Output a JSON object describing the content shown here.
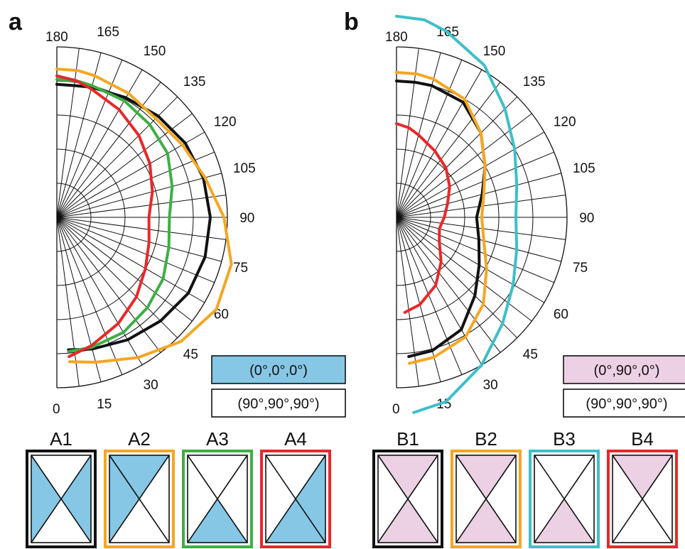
{
  "chart_data": [
    {
      "type": "line",
      "coordinate_system": "polar",
      "panel_label": "a",
      "angle_ticks": [
        "0",
        "15",
        "30",
        "45",
        "60",
        "75",
        "90",
        "105",
        "120",
        "135",
        "150",
        "165",
        "180"
      ],
      "grid": true,
      "legend": [
        {
          "text": "(0°,0°,0°)",
          "fill": "#86c7e6"
        },
        {
          "text": "(90°,90°,90°)",
          "fill": "#ffffff"
        }
      ],
      "config_fill": "#86c7e6",
      "configs": [
        {
          "label": "A1",
          "color": "#111111",
          "shaded": [
            "left",
            "right"
          ]
        },
        {
          "label": "A2",
          "color": "#f5a623",
          "shaded": [
            "top",
            "left"
          ]
        },
        {
          "label": "A3",
          "color": "#3cb043",
          "shaded": [
            "bottom"
          ]
        },
        {
          "label": "A4",
          "color": "#e8282b",
          "shaded": [
            "right",
            "bottom"
          ]
        }
      ],
      "series": [
        {
          "color": "#111111",
          "theta": [
            5,
            15,
            30,
            45,
            60,
            75,
            90,
            105,
            120,
            135,
            150,
            165,
            172,
            180
          ],
          "r": [
            0.78,
            0.8,
            0.83,
            0.86,
            0.89,
            0.9,
            0.9,
            0.89,
            0.87,
            0.84,
            0.81,
            0.79,
            0.78,
            0.78
          ]
        },
        {
          "color": "#f5a623",
          "theta": [
            5,
            15,
            30,
            45,
            60,
            75,
            90,
            105,
            120,
            135,
            150,
            165,
            172,
            180
          ],
          "r": [
            0.85,
            0.88,
            0.95,
            1.03,
            1.08,
            1.06,
            0.98,
            0.9,
            0.85,
            0.82,
            0.84,
            0.86,
            0.87,
            0.87
          ]
        },
        {
          "color": "#3cb043",
          "theta": [
            5,
            15,
            30,
            45,
            60,
            75,
            90,
            105,
            120,
            135,
            150,
            165,
            172,
            180
          ],
          "r": [
            0.79,
            0.79,
            0.78,
            0.75,
            0.72,
            0.68,
            0.66,
            0.7,
            0.75,
            0.77,
            0.79,
            0.8,
            0.81,
            0.81
          ]
        },
        {
          "color": "#e8282b",
          "theta": [
            5,
            15,
            30,
            45,
            60,
            75,
            90,
            105,
            120,
            135,
            150,
            165,
            172,
            180
          ],
          "r": [
            0.82,
            0.78,
            0.72,
            0.66,
            0.6,
            0.56,
            0.54,
            0.58,
            0.63,
            0.68,
            0.73,
            0.78,
            0.81,
            0.83
          ]
        }
      ]
    },
    {
      "type": "line",
      "coordinate_system": "polar",
      "panel_label": "b",
      "angle_ticks": [
        "0",
        "15",
        "30",
        "45",
        "60",
        "75",
        "90",
        "105",
        "120",
        "135",
        "150",
        "165",
        "180"
      ],
      "grid": true,
      "legend": [
        {
          "text": "(0°,90°,0°)",
          "fill": "#ecd0e3"
        },
        {
          "text": "(90°,90°,90°)",
          "fill": "#ffffff"
        }
      ],
      "config_fill": "#ecd0e3",
      "configs": [
        {
          "label": "B1",
          "color": "#111111",
          "shaded": [
            "top",
            "bottom"
          ]
        },
        {
          "label": "B2",
          "color": "#f5a623",
          "shaded": [
            "top",
            "bottom"
          ]
        },
        {
          "label": "B3",
          "color": "#3dbfc9",
          "shaded": [
            "bottom"
          ]
        },
        {
          "label": "B4",
          "color": "#e8282b",
          "shaded": [
            "top"
          ]
        }
      ],
      "series": [
        {
          "color": "#111111",
          "theta": [
            5,
            15,
            30,
            45,
            60,
            75,
            90,
            105,
            120,
            135,
            150,
            165,
            172,
            180
          ],
          "r": [
            0.82,
            0.81,
            0.76,
            0.65,
            0.56,
            0.5,
            0.47,
            0.52,
            0.6,
            0.7,
            0.78,
            0.8,
            0.8,
            0.8
          ]
        },
        {
          "color": "#f5a623",
          "theta": [
            5,
            15,
            30,
            45,
            60,
            75,
            90,
            105,
            120,
            135,
            150,
            165,
            172,
            180
          ],
          "r": [
            0.86,
            0.85,
            0.81,
            0.72,
            0.61,
            0.53,
            0.5,
            0.53,
            0.6,
            0.7,
            0.8,
            0.84,
            0.85,
            0.85
          ]
        },
        {
          "color": "#3dbfc9",
          "theta": [
            5,
            15,
            30,
            45,
            60,
            75,
            90,
            105,
            120,
            135,
            150,
            165,
            172,
            180
          ],
          "r": [
            1.15,
            1.12,
            1.0,
            0.88,
            0.79,
            0.73,
            0.7,
            0.73,
            0.8,
            0.9,
            1.03,
            1.13,
            1.17,
            1.18
          ]
        },
        {
          "color": "#e8282b",
          "theta": [
            5,
            15,
            30,
            45,
            60,
            75,
            90,
            105,
            120,
            135,
            150,
            165,
            172,
            180
          ],
          "r": [
            0.56,
            0.53,
            0.46,
            0.37,
            0.29,
            0.26,
            0.28,
            0.31,
            0.36,
            0.41,
            0.45,
            0.5,
            0.53,
            0.55
          ]
        }
      ]
    }
  ]
}
